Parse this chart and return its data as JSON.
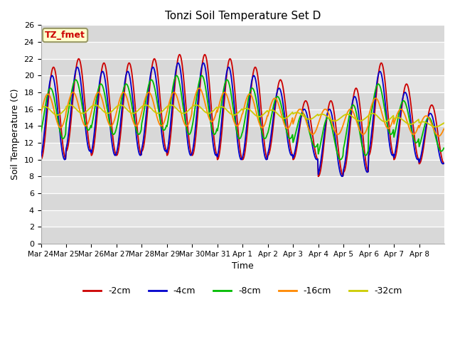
{
  "title": "Tonzi Soil Temperature Set D",
  "xlabel": "Time",
  "ylabel": "Soil Temperature (C)",
  "ylim": [
    0,
    26
  ],
  "yticks": [
    0,
    2,
    4,
    6,
    8,
    10,
    12,
    14,
    16,
    18,
    20,
    22,
    24,
    26
  ],
  "series_labels": [
    "-2cm",
    "-4cm",
    "-8cm",
    "-16cm",
    "-32cm"
  ],
  "series_colors": [
    "#cc0000",
    "#0000cc",
    "#00bb00",
    "#ff8800",
    "#cccc00"
  ],
  "annotation_label": "TZ_fmet",
  "annotation_color": "#cc0000",
  "annotation_bg": "#ffffcc",
  "annotation_border": "#999966",
  "background_color": "#d8d8d8",
  "band_colors": [
    "#d8d8d8",
    "#e8e8e8"
  ],
  "x_tick_labels": [
    "Mar 24",
    "Mar 25",
    "Mar 26",
    "Mar 27",
    "Mar 28",
    "Mar 29",
    "Mar 30",
    "Mar 31",
    "Apr 1",
    "Apr 2",
    "Apr 3",
    "Apr 4",
    "Apr 5",
    "Apr 6",
    "Apr 7",
    "Apr 8"
  ],
  "n_days": 16,
  "pts_per_day": 48,
  "mean_2cm": [
    15.5,
    16.5,
    16.0,
    16.0,
    16.5,
    16.5,
    16.5,
    16.0,
    15.5,
    15.0,
    13.5,
    12.5,
    13.5,
    16.0,
    14.5,
    13.0
  ],
  "amp_2cm": [
    5.5,
    5.5,
    5.5,
    5.5,
    5.5,
    6.0,
    6.0,
    6.0,
    5.5,
    4.5,
    3.5,
    4.5,
    5.0,
    5.5,
    4.5,
    3.5
  ],
  "mean_4cm": [
    15.0,
    16.0,
    15.5,
    15.5,
    16.0,
    16.0,
    16.0,
    15.5,
    15.0,
    14.5,
    13.0,
    12.0,
    13.0,
    15.5,
    14.0,
    12.5
  ],
  "amp_4cm": [
    5.0,
    5.0,
    5.0,
    5.0,
    5.0,
    5.5,
    5.5,
    5.5,
    5.0,
    4.0,
    3.0,
    4.0,
    4.5,
    5.0,
    4.0,
    3.0
  ],
  "mean_8cm": [
    15.5,
    16.5,
    16.0,
    16.0,
    16.5,
    16.5,
    16.5,
    16.0,
    15.5,
    15.0,
    13.5,
    12.5,
    13.5,
    16.0,
    14.5,
    13.0
  ],
  "amp_8cm": [
    3.0,
    3.0,
    3.0,
    3.0,
    3.0,
    3.5,
    3.5,
    3.5,
    3.0,
    2.5,
    2.0,
    2.5,
    3.0,
    3.0,
    2.5,
    2.0
  ],
  "mean_16cm": [
    15.8,
    16.0,
    16.0,
    16.0,
    16.0,
    16.0,
    16.5,
    16.0,
    15.8,
    15.5,
    14.5,
    14.5,
    14.5,
    15.5,
    14.5,
    14.0
  ],
  "amp_16cm": [
    2.0,
    2.0,
    2.0,
    2.0,
    2.0,
    2.0,
    2.0,
    2.0,
    2.0,
    1.8,
    1.5,
    1.5,
    1.5,
    1.8,
    1.5,
    1.2
  ],
  "mean_32cm": [
    15.8,
    16.0,
    16.0,
    16.0,
    16.0,
    16.0,
    16.0,
    15.8,
    15.6,
    15.4,
    15.2,
    15.0,
    15.0,
    15.0,
    14.6,
    14.2
  ],
  "amp_32cm": [
    0.5,
    0.5,
    0.5,
    0.5,
    0.5,
    0.5,
    0.5,
    0.5,
    0.5,
    0.5,
    0.4,
    0.4,
    0.4,
    0.5,
    0.4,
    0.3
  ],
  "phase_2cm": 0.0,
  "phase_4cm": 0.35,
  "phase_8cm": 0.75,
  "phase_16cm": 1.4,
  "phase_32cm": 2.2
}
